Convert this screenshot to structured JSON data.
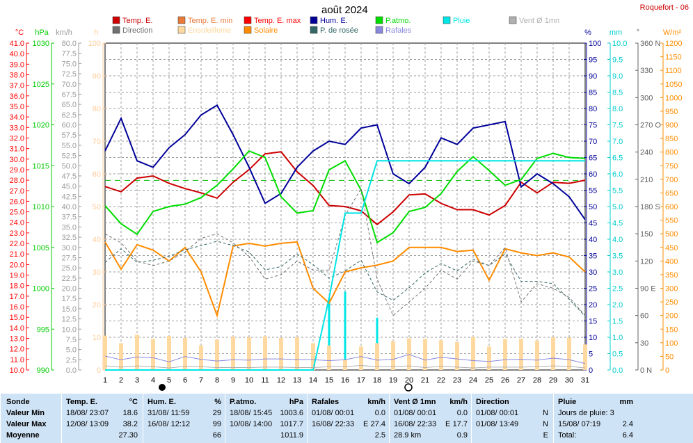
{
  "header": {
    "title": "août 2024",
    "station": "Roquefort - 06"
  },
  "axes": {
    "temp": {
      "unit": "°C",
      "ticks": [
        "41.0",
        "40.0",
        "39.0",
        "38.0",
        "37.0",
        "36.0",
        "35.0",
        "34.0",
        "33.0",
        "32.0",
        "31.0",
        "30.0",
        "29.0",
        "28.0",
        "27.0",
        "26.0",
        "25.0",
        "24.0",
        "23.0",
        "22.0",
        "21.0",
        "20.0",
        "19.0",
        "18.0",
        "17.0",
        "16.0",
        "15.0",
        "14.0",
        "13.0",
        "12.0",
        "11.0",
        "10.0"
      ]
    },
    "pres": {
      "unit": "hPa",
      "ticks": [
        "1030",
        "1025",
        "1020",
        "1015",
        "1010",
        "1005",
        "1000",
        "995",
        "990"
      ]
    },
    "wind": {
      "unit": "km/h",
      "ticks": [
        "80.0",
        "77.5",
        "75.0",
        "72.5",
        "70.0",
        "67.5",
        "65.0",
        "62.5",
        "60.0",
        "57.5",
        "55.0",
        "52.5",
        "50.0",
        "47.5",
        "45.0",
        "42.5",
        "40.0",
        "37.5",
        "35.0",
        "32.5",
        "30.0",
        "27.5",
        "25.0",
        "22.5",
        "20.0",
        "17.5",
        "15.0",
        "12.5",
        "10.0",
        "7.5",
        "5.0",
        "2.5",
        "0.0"
      ]
    },
    "sun": {
      "unit": "h",
      "ticks": [
        "100",
        "90",
        "80",
        "70",
        "60",
        "50",
        "40",
        "30",
        "20",
        "10",
        "0"
      ]
    },
    "hum": {
      "unit": "%",
      "ticks": [
        "100",
        "95",
        "90",
        "85",
        "80",
        "75",
        "70",
        "65",
        "60",
        "55",
        "50",
        "45",
        "40",
        "35",
        "30",
        "25",
        "20",
        "15",
        "10",
        "5",
        "0"
      ]
    },
    "rain": {
      "unit": "mm",
      "ticks": [
        "10.0",
        "9.5",
        "9.0",
        "8.5",
        "8.0",
        "7.5",
        "7.0",
        "6.5",
        "6.0",
        "5.5",
        "5.0",
        "4.5",
        "4.0",
        "3.5",
        "3.0",
        "2.5",
        "2.0",
        "1.5",
        "1.0",
        "0.5",
        "0.0"
      ]
    },
    "dir": {
      "unit": "°",
      "ticks": [
        "360 N",
        "330",
        "300",
        "270 O",
        "240",
        "210",
        "180 S",
        "150",
        "120",
        "90  E",
        "60",
        "30",
        "0    N"
      ]
    },
    "solar": {
      "unit": "W/m²",
      "ticks": [
        "1200",
        "1150",
        "1100",
        "1050",
        "1000",
        "950",
        "900",
        "850",
        "800",
        "750",
        "700",
        "650",
        "600",
        "550",
        "500",
        "450",
        "400",
        "350",
        "300",
        "250",
        "200",
        "150",
        "100",
        "50",
        "0"
      ]
    },
    "x_days": [
      "1",
      "2",
      "3",
      "4",
      "5",
      "6",
      "7",
      "8",
      "9",
      "10",
      "11",
      "12",
      "13",
      "14",
      "15",
      "16",
      "17",
      "18",
      "19",
      "20",
      "21",
      "22",
      "23",
      "24",
      "25",
      "26",
      "27",
      "28",
      "29",
      "30",
      "31"
    ]
  },
  "legend": [
    {
      "label": "Temp. E.",
      "color": "#cc0000"
    },
    {
      "label": "Temp. E. min",
      "color": "#e87a3a"
    },
    {
      "label": "Temp. E. max",
      "color": "#ff0000"
    },
    {
      "label": "Hum. E.",
      "color": "#000099"
    },
    {
      "label": "P.atmo.",
      "color": "#00dd00"
    },
    {
      "label": "Pluie",
      "color": "#00e5e5"
    },
    {
      "label": "Vent Ø 1mn",
      "color": "#b0b0b0"
    },
    {
      "label": "Direction",
      "color": "#707070"
    },
    {
      "label": "Ensoleilleme",
      "color": "#ffd9a0"
    },
    {
      "label": "Solaire",
      "color": "#ff8c00"
    },
    {
      "label": "P. de rosée",
      "color": "#336666"
    },
    {
      "label": "Rafales",
      "color": "#8888dd"
    }
  ],
  "chart_data": {
    "type": "line",
    "x": [
      1,
      2,
      3,
      4,
      5,
      6,
      7,
      8,
      9,
      10,
      11,
      12,
      13,
      14,
      15,
      16,
      17,
      18,
      19,
      20,
      21,
      22,
      23,
      24,
      25,
      26,
      27,
      28,
      29,
      30,
      31
    ],
    "series": [
      {
        "name": "Temp. E.",
        "color": "#cc0000",
        "axis": "temp",
        "values": [
          27.4,
          26.9,
          28.2,
          28.4,
          27.7,
          27.2,
          26.8,
          26.3,
          27.8,
          29.0,
          30.5,
          30.7,
          28.8,
          27.5,
          25.6,
          25.5,
          25.1,
          23.8,
          25.0,
          26.6,
          26.7,
          25.8,
          25.2,
          25.2,
          24.7,
          25.6,
          27.8,
          26.8,
          27.8,
          27.7,
          28.0
        ]
      },
      {
        "name": "Hum. E.",
        "color": "#000099",
        "axis": "hum",
        "values": [
          67,
          77,
          64,
          62,
          68,
          72,
          78,
          81,
          72,
          62,
          51,
          54,
          62,
          67,
          70,
          69,
          74,
          75,
          60,
          57,
          62,
          71,
          69,
          74,
          75,
          76,
          56,
          60,
          57,
          53,
          46
        ]
      },
      {
        "name": "P.atmo.",
        "color": "#00dd00",
        "axis": "pres",
        "values": [
          1010.1,
          1007.9,
          1006.6,
          1009.4,
          1010.0,
          1010.3,
          1011.1,
          1012.6,
          1014.6,
          1016.8,
          1016.0,
          1011.2,
          1009.2,
          1009.5,
          1014.5,
          1015.6,
          1012.0,
          1005.6,
          1006.8,
          1009.4,
          1009.9,
          1011.6,
          1014.3,
          1016.1,
          1014.4,
          1012.6,
          1013.3,
          1015.9,
          1016.5,
          1016.0,
          1015.9
        ]
      },
      {
        "name": "Solaire",
        "color": "#ff8c00",
        "axis": "solar",
        "values": [
          470,
          370,
          460,
          440,
          400,
          450,
          360,
          200,
          455,
          465,
          455,
          465,
          470,
          300,
          245,
          360,
          375,
          385,
          400,
          450,
          450,
          450,
          435,
          440,
          330,
          445,
          430,
          420,
          430,
          415,
          360
        ]
      },
      {
        "name": "P. de rosée",
        "color": "#336666",
        "axis": "temp",
        "dashed": true,
        "values": [
          20.2,
          21.5,
          20.2,
          20.4,
          20.8,
          21.4,
          21.8,
          22.2,
          21.8,
          21.2,
          19.5,
          19.8,
          21.0,
          20.0,
          18.7,
          19.4,
          20.4,
          17.4,
          16.6,
          17.8,
          19.2,
          20.1,
          19.4,
          20.5,
          19.9,
          21.0,
          18.4,
          18.4,
          18.2,
          16.7,
          15.1
        ]
      },
      {
        "name": "Direction",
        "color": "#707070",
        "axis": "dir",
        "dashed": true,
        "values": [
          150,
          140,
          120,
          115,
          120,
          130,
          145,
          150,
          140,
          125,
          100,
          105,
          120,
          110,
          110,
          170,
          200,
          100,
          60,
          75,
          90,
          110,
          100,
          120,
          115,
          135,
          75,
          95,
          90,
          80,
          60
        ]
      },
      {
        "name": "Pluie",
        "color": "#00e5e5",
        "axis": "rain",
        "cumulative": true,
        "values": [
          0,
          0,
          0,
          0,
          0,
          0,
          0,
          0,
          0,
          0,
          0,
          0,
          0,
          0,
          2.2,
          4.8,
          4.8,
          6.4,
          6.4,
          6.4,
          6.4,
          6.4,
          6.4,
          6.4,
          6.4,
          6.4,
          6.4,
          6.4,
          6.4,
          6.4,
          6.4
        ]
      },
      {
        "name": "Pluie",
        "color": "#00e5e5",
        "axis": "rain",
        "type": "bar",
        "values": [
          0,
          0,
          0,
          0,
          0,
          0,
          0,
          0,
          0,
          0,
          0,
          0,
          0,
          0,
          2.2,
          2.4,
          0,
          1.6,
          0,
          0,
          0,
          0,
          0,
          0,
          0,
          0,
          0,
          0,
          0,
          0,
          0
        ]
      },
      {
        "name": "Ensoleilleme",
        "color": "#ffd9a0",
        "axis": "sun",
        "type": "bar",
        "values": [
          10.5,
          8.2,
          10.8,
          9.5,
          10.4,
          9.8,
          7.5,
          9.3,
          10.2,
          10.0,
          10.3,
          9.8,
          10.0,
          8.2,
          7.5,
          3.2,
          7.2,
          8.2,
          8.8,
          9.7,
          9.5,
          9.1,
          8.5,
          10.1,
          7.2,
          9.5,
          9.6,
          9.0,
          10.0,
          9.9,
          7.8
        ]
      },
      {
        "name": "Rafales",
        "color": "#8888dd",
        "axis": "wind",
        "values": [
          3.4,
          2.5,
          3.2,
          3.0,
          2.0,
          3.3,
          2.6,
          2.2,
          2.5,
          2.4,
          2.7,
          2.7,
          2.5,
          2.5,
          2.3,
          2.5,
          3.3,
          2.4,
          2.6,
          3.8,
          2.4,
          3.1,
          2.7,
          2.3,
          2.1,
          2.5,
          2.6,
          2.4,
          2.9,
          2.5,
          1.6
        ]
      },
      {
        "name": "Vent Ø 1mn",
        "color": "#b0b0b0",
        "axis": "wind",
        "values": [
          1.0,
          0.7,
          1.0,
          0.8,
          0.5,
          0.9,
          0.8,
          0.6,
          0.6,
          0.6,
          0.7,
          0.7,
          0.6,
          0.6,
          0.8,
          0.8,
          1.1,
          0.8,
          0.8,
          1.0,
          0.6,
          0.9,
          0.7,
          0.5,
          0.7,
          0.7,
          0.7,
          0.8,
          1.0,
          0.9,
          0.5
        ]
      }
    ]
  },
  "stats": {
    "sonde": {
      "title": "Sonde",
      "min": "Valeur Min",
      "max": "Valeur Max",
      "avg": "Moyenne"
    },
    "temp": {
      "title": "Temp. E.",
      "unit": "°C",
      "min_date": "18/08/ 23:07",
      "min_val": "18.6",
      "max_date": "12/08/ 13:09",
      "max_val": "38.2",
      "avg_val": "27.30"
    },
    "hum": {
      "title": "Hum. E.",
      "unit": "%",
      "min_date": "31/08/ 11:59",
      "min_val": "29",
      "max_date": "16/08/ 12:12",
      "max_val": "99",
      "avg_val": "66"
    },
    "pres": {
      "title": "P.atmo.",
      "unit": "hPa",
      "min_date": "18/08/ 15:45",
      "min_val": "1003.6",
      "max_date": "10/08/ 14:00",
      "max_val": "1017.7",
      "avg_val": "1011.9"
    },
    "gust": {
      "title": "Rafales",
      "unit": "km/h",
      "min_date": "01/08/ 00:01",
      "min_val": "0.0",
      "max_date": "16/08/ 22:33",
      "max_dir": "E",
      "max_val": "27.4",
      "avg_val": "2.5"
    },
    "wind": {
      "title": "Vent Ø 1mn",
      "unit": "km/h",
      "min_date": "01/08/ 00:01",
      "min_val": "0.0",
      "max_date": "16/08/ 22:33",
      "max_dir": "E",
      "max_val": "17.7",
      "avg_extra": "28.9 km",
      "avg_val": "0.9"
    },
    "dir": {
      "title": "Direction",
      "min_date": "01/08/ 00:01",
      "min_val": "N",
      "max_date": "01/08/ 13:49",
      "max_val": "N",
      "avg_val": "E"
    },
    "rain": {
      "title": "Pluie",
      "unit": "mm",
      "days": "Jours de pluie: 3",
      "max_date": "15/08/ 07:19",
      "max_val": "2.4",
      "total_label": "Total:",
      "total_val": "6.4"
    }
  }
}
